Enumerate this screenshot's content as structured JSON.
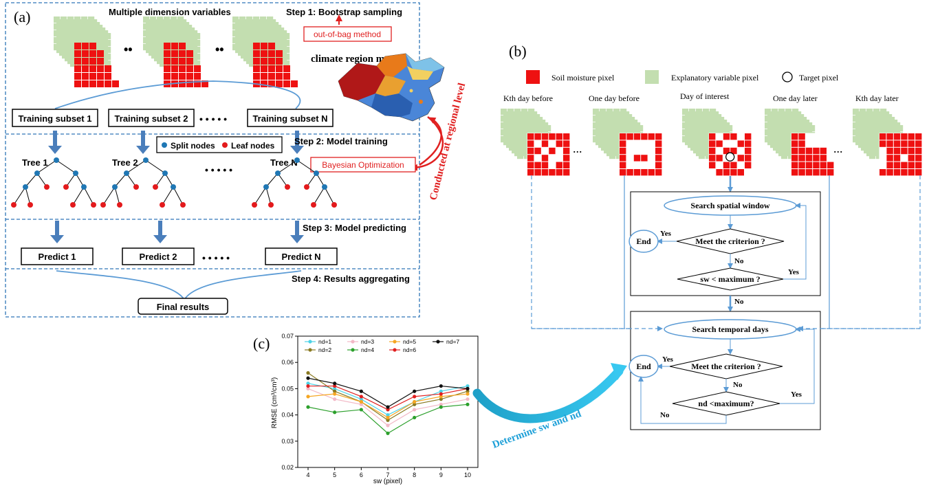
{
  "panel_a": {
    "label": "(a)",
    "header": "Multiple dimension variables",
    "step1": "Step 1: Bootstrap sampling",
    "oob": "out-of-bag method",
    "map_title": "climate region map",
    "regional": "Conducted at regional level",
    "ellipsis_small": "••",
    "ellipsis": "• • • • •",
    "subsets": [
      "Training subset 1",
      "Training subset 2",
      "Training subset N"
    ],
    "step2": "Step 2: Model training",
    "legend_split": "Split nodes",
    "legend_leaf": "Leaf nodes",
    "trees": [
      "Tree 1",
      "Tree 2",
      "Tree N"
    ],
    "bayes": "Bayesian Optimization",
    "step3": "Step 3: Model predicting",
    "predicts": [
      "Predict 1",
      "Predict 2",
      "Predict N"
    ],
    "step4": "Step 4: Results aggregating",
    "final": "Final results"
  },
  "panel_b": {
    "label": "(b)",
    "legend_soil": "Soil moisture pixel",
    "legend_expl": "Explanatory variable pixel",
    "legend_target": "Target pixel",
    "days": [
      "Kth day before",
      "One day before",
      "Day of interest",
      "One day later",
      "Kth day later"
    ],
    "dots": "...",
    "search_spatial": "Search spatial window",
    "search_temporal": "Search temporal days",
    "meet": "Meet the criterion ?",
    "sw_cond": "sw < maximum ?",
    "nd_cond": "nd <maximum?",
    "end": "End",
    "yes": "Yes",
    "no": "No"
  },
  "panel_c": {
    "label": "(c)",
    "arrow_text": "Determine sw and nd"
  },
  "colors": {
    "dash_blue": "#2e75b6",
    "arrow_blue": "#4a7ebb",
    "red": "#ee1111",
    "green": "#c3deb0",
    "split": "#1f77b4",
    "leaf": "#e31a1c"
  },
  "chart_data": {
    "type": "line",
    "xlabel": "sw (pixel)",
    "ylabel": "RMSE (cm³/cm³)",
    "ylim": [
      0.02,
      0.07
    ],
    "xlim": [
      4,
      10
    ],
    "x": [
      4,
      5,
      6,
      7,
      8,
      9,
      10
    ],
    "yticks": [
      0.02,
      0.03,
      0.04,
      0.05,
      0.06,
      0.07
    ],
    "grid": false,
    "legend_position": "top",
    "series": [
      {
        "name": "nd=1",
        "color": "#4dd2e6",
        "values": [
          0.052,
          0.05,
          0.046,
          0.04,
          0.045,
          0.049,
          0.051
        ]
      },
      {
        "name": "nd=2",
        "color": "#8a7a22",
        "values": [
          0.056,
          0.049,
          0.045,
          0.038,
          0.044,
          0.046,
          0.049
        ]
      },
      {
        "name": "nd=3",
        "color": "#f2b8c6",
        "values": [
          0.05,
          0.046,
          0.044,
          0.036,
          0.042,
          0.044,
          0.046
        ]
      },
      {
        "name": "nd=4",
        "color": "#2ca02c",
        "values": [
          0.043,
          0.041,
          0.042,
          0.033,
          0.039,
          0.043,
          0.044
        ]
      },
      {
        "name": "nd=5",
        "color": "#f5a623",
        "values": [
          0.047,
          0.048,
          0.045,
          0.039,
          0.045,
          0.047,
          0.048
        ]
      },
      {
        "name": "nd=6",
        "color": "#e02020",
        "values": [
          0.051,
          0.051,
          0.047,
          0.042,
          0.047,
          0.048,
          0.05
        ]
      },
      {
        "name": "nd=7",
        "color": "#111111",
        "values": [
          0.054,
          0.052,
          0.049,
          0.043,
          0.049,
          0.051,
          0.05
        ]
      }
    ]
  }
}
